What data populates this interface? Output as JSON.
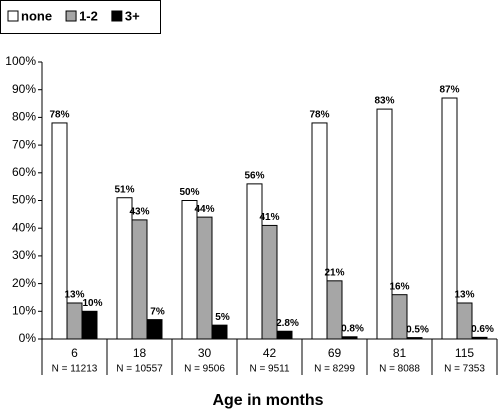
{
  "chart_data": {
    "type": "bar",
    "x_label": "Age in months",
    "categories": [
      "6",
      "18",
      "30",
      "42",
      "69",
      "81",
      "115"
    ],
    "sample_sizes": [
      "N = 11213",
      "N = 10557",
      "N = 9506",
      "N = 9511",
      "N = 8299",
      "N = 8088",
      "N = 7353"
    ],
    "series": [
      {
        "name": "none",
        "color": "#ffffff",
        "values": [
          78,
          51,
          50,
          56,
          78,
          83,
          87
        ],
        "value_labels": [
          "78%",
          "51%",
          "50%",
          "56%",
          "78%",
          "83%",
          "87%"
        ]
      },
      {
        "name": "1-2",
        "color": "#a6a6a6",
        "values": [
          13,
          43,
          44,
          41,
          21,
          16,
          13
        ],
        "value_labels": [
          "13%",
          "43%",
          "44%",
          "41%",
          "21%",
          "16%",
          "13%"
        ]
      },
      {
        "name": "3+",
        "color": "#000000",
        "values": [
          10,
          7,
          5,
          2.8,
          0.8,
          0.5,
          0.6
        ],
        "value_labels": [
          "10%",
          "7%",
          "5%",
          "2.8%",
          "0.8%",
          "0.5%",
          "0.6%"
        ]
      }
    ],
    "ylim": [
      0,
      100
    ],
    "yticks": [
      {
        "value": 0,
        "label": "0%"
      },
      {
        "value": 10,
        "label": "10%"
      },
      {
        "value": 20,
        "label": "20%"
      },
      {
        "value": 30,
        "label": "30%"
      },
      {
        "value": 40,
        "label": "40%"
      },
      {
        "value": 50,
        "label": "50%"
      },
      {
        "value": 60,
        "label": "60%"
      },
      {
        "value": 70,
        "label": "70%"
      },
      {
        "value": 80,
        "label": "80%"
      },
      {
        "value": 90,
        "label": "90%"
      },
      {
        "value": 100,
        "label": "100%"
      }
    ],
    "grid": false,
    "legend": "top-left"
  }
}
